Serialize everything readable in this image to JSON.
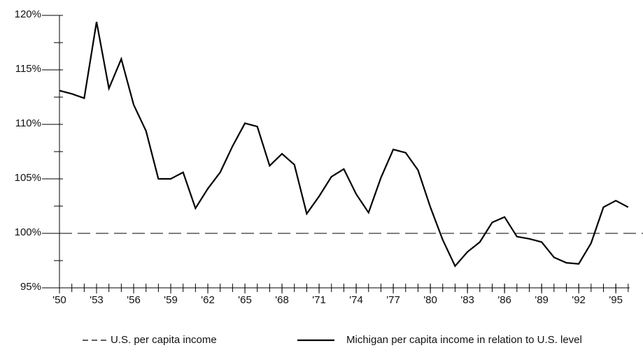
{
  "chart_data": {
    "type": "line",
    "x": [
      1950,
      1951,
      1952,
      1953,
      1954,
      1955,
      1956,
      1957,
      1958,
      1959,
      1960,
      1961,
      1962,
      1963,
      1964,
      1965,
      1966,
      1967,
      1968,
      1969,
      1970,
      1971,
      1972,
      1973,
      1974,
      1975,
      1976,
      1977,
      1978,
      1979,
      1980,
      1981,
      1982,
      1983,
      1984,
      1985,
      1986,
      1987,
      1988,
      1989,
      1990,
      1991,
      1992,
      1993,
      1994,
      1995,
      1996
    ],
    "series": [
      {
        "name": "Michigan per capita income in relation to U.S. level",
        "color": "#000000",
        "values": [
          113.1,
          112.8,
          112.4,
          119.4,
          113.3,
          116.0,
          111.8,
          109.4,
          105.0,
          105.0,
          105.6,
          102.3,
          104.1,
          105.6,
          108.0,
          110.1,
          109.8,
          106.2,
          107.3,
          106.3,
          101.8,
          103.4,
          105.2,
          105.9,
          103.6,
          101.9,
          105.1,
          107.7,
          107.4,
          105.8,
          102.4,
          99.4,
          97.0,
          98.3,
          99.2,
          101.0,
          101.5,
          99.7,
          99.5,
          99.2,
          97.8,
          97.3,
          97.2,
          99.1,
          102.4,
          103.0,
          102.4
        ]
      }
    ],
    "reference_lines": [
      {
        "name": "U.S. per capita income",
        "value": 100,
        "color": "#000000",
        "style": "dashed"
      }
    ],
    "xlim": [
      1950,
      1996
    ],
    "xticks": [
      {
        "value": 1950,
        "label": "'50"
      },
      {
        "value": 1953,
        "label": "'53"
      },
      {
        "value": 1956,
        "label": "'56"
      },
      {
        "value": 1959,
        "label": "'59"
      },
      {
        "value": 1962,
        "label": "'62"
      },
      {
        "value": 1965,
        "label": "'65"
      },
      {
        "value": 1968,
        "label": "'68"
      },
      {
        "value": 1971,
        "label": "'71"
      },
      {
        "value": 1974,
        "label": "'74"
      },
      {
        "value": 1977,
        "label": "'77"
      },
      {
        "value": 1980,
        "label": "'80"
      },
      {
        "value": 1983,
        "label": "'83"
      },
      {
        "value": 1986,
        "label": "'86"
      },
      {
        "value": 1989,
        "label": "'89"
      },
      {
        "value": 1992,
        "label": "'92"
      },
      {
        "value": 1995,
        "label": "'95"
      }
    ],
    "xminor_step": 1,
    "ylim": [
      95,
      120
    ],
    "yticks": [
      {
        "value": 95,
        "label": "95%"
      },
      {
        "value": 100,
        "label": "100%"
      },
      {
        "value": 105,
        "label": "105%"
      },
      {
        "value": 110,
        "label": "110%"
      },
      {
        "value": 115,
        "label": "115%"
      },
      {
        "value": 120,
        "label": "120%"
      }
    ],
    "yminor_step": 2.5,
    "grid": false
  }
}
